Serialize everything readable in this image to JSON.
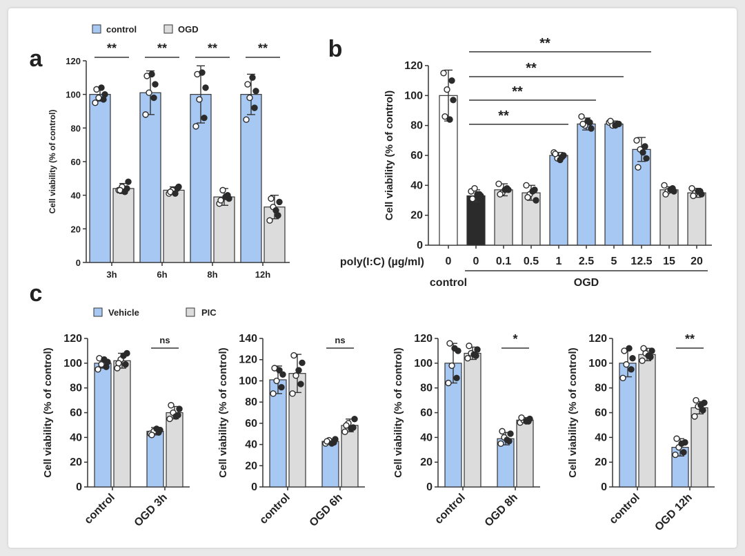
{
  "colors": {
    "blue": "#a8c8f4",
    "gray": "#dcdcdc",
    "black": "#2b2b2b",
    "white": "#ffffff",
    "axis": "#333333"
  },
  "panel_letters": {
    "a": "a",
    "b": "b",
    "c": "c"
  },
  "chart_data": [
    {
      "id": "a",
      "type": "bar",
      "title": "",
      "ylabel": "Cell viability (% of control)",
      "xlabel": "",
      "ylim": [
        0,
        120
      ],
      "yticks": [
        0,
        20,
        40,
        60,
        80,
        100,
        120
      ],
      "categories": [
        "3h",
        "6h",
        "8h",
        "12h"
      ],
      "legend": [
        {
          "label": "control",
          "color": "blue"
        },
        {
          "label": "OGD",
          "color": "gray"
        }
      ],
      "series": [
        {
          "name": "control",
          "color": "blue",
          "values": [
            100,
            101,
            100,
            100
          ],
          "errors": [
            4,
            13,
            17,
            12
          ],
          "points": [
            [
              95,
              97,
              98,
              100,
              103,
              104
            ],
            [
              88,
              98,
              101,
              106,
              111,
              112
            ],
            [
              81,
              86,
              97,
              104,
              112,
              113
            ],
            [
              85,
              92,
              98,
              102,
              106,
              110
            ]
          ]
        },
        {
          "name": "OGD",
          "color": "gray",
          "values": [
            44,
            43,
            39,
            33
          ],
          "errors": [
            3,
            2,
            5,
            7
          ],
          "points": [
            [
              43,
              44,
              45,
              48,
              43,
              42
            ],
            [
              41,
              44,
              43,
              45,
              42,
              41
            ],
            [
              35,
              40,
              43,
              38,
              37,
              39
            ],
            [
              25,
              28,
              33,
              36,
              38,
              31
            ]
          ]
        }
      ],
      "significance": [
        "**",
        "**",
        "**",
        "**"
      ]
    },
    {
      "id": "b",
      "type": "bar",
      "ylabel": "Cell viability (% of control)",
      "xlabel": "poly(I:C) (µg/ml)",
      "ylim": [
        0,
        120
      ],
      "yticks": [
        0,
        20,
        40,
        60,
        80,
        100,
        120
      ],
      "categories": [
        "0",
        "0",
        "0.1",
        "0.5",
        "1",
        "2.5",
        "5",
        "12.5",
        "15",
        "20"
      ],
      "groups": [
        {
          "label": "control",
          "from": 0,
          "to": 0
        },
        {
          "label": "OGD",
          "from": 1,
          "to": 9
        }
      ],
      "values": [
        100,
        33,
        37,
        35,
        60,
        81,
        81,
        64,
        37,
        35
      ],
      "errors": [
        17,
        4,
        4,
        5,
        2,
        4,
        2,
        8,
        2,
        3
      ],
      "colors": [
        "white",
        "black",
        "gray",
        "gray",
        "blue",
        "blue",
        "blue",
        "blue",
        "gray",
        "gray"
      ],
      "points": [
        [
          115,
          110,
          104,
          97,
          86,
          84
        ],
        [
          36,
          34,
          38,
          33,
          31,
          34
        ],
        [
          41,
          38,
          35,
          37,
          34,
          37
        ],
        [
          40,
          37,
          34,
          30,
          32,
          36
        ],
        [
          62,
          59,
          58,
          60,
          61,
          57
        ],
        [
          86,
          82,
          80,
          78,
          81,
          83
        ],
        [
          82,
          81,
          80,
          81,
          83,
          80
        ],
        [
          70,
          66,
          64,
          58,
          52,
          62
        ],
        [
          40,
          38,
          36,
          36,
          34,
          37
        ],
        [
          38,
          36,
          35,
          34,
          33,
          36
        ]
      ],
      "significance": [
        {
          "from": 1,
          "to": 4,
          "label": "**"
        },
        {
          "from": 1,
          "to": 5,
          "label": "**"
        },
        {
          "from": 1,
          "to": 6,
          "label": "**"
        },
        {
          "from": 1,
          "to": 7,
          "label": "**"
        }
      ]
    },
    {
      "id": "c1",
      "type": "bar",
      "ylabel": "Cell viability (% of control)",
      "ylim": [
        0,
        120
      ],
      "yticks": [
        0,
        20,
        40,
        60,
        80,
        100,
        120
      ],
      "categories": [
        "control",
        "OGD 3h"
      ],
      "series": [
        {
          "name": "Vehicle",
          "color": "blue",
          "values": [
            100,
            45
          ],
          "errors": [
            4,
            3
          ],
          "points": [
            [
              95,
              97,
              99,
              101,
              104,
              103
            ],
            [
              43,
              44,
              45,
              46,
              42,
              47
            ]
          ]
        },
        {
          "name": "PIC",
          "color": "gray",
          "values": [
            102,
            60
          ],
          "errors": [
            6,
            5
          ],
          "points": [
            [
              96,
              99,
              103,
              108,
              100,
              106
            ],
            [
              55,
              58,
              60,
              63,
              66,
              57
            ]
          ]
        }
      ],
      "significance": "ns"
    },
    {
      "id": "c2",
      "type": "bar",
      "ylabel": "Cell viability (% of control)",
      "ylim": [
        0,
        140
      ],
      "yticks": [
        0,
        20,
        40,
        60,
        80,
        100,
        120,
        140
      ],
      "categories": [
        "control",
        "OGD 6h"
      ],
      "series": [
        {
          "name": "Vehicle",
          "color": "blue",
          "values": [
            101,
            43
          ],
          "errors": [
            13,
            2
          ],
          "points": [
            [
              88,
              94,
              100,
              106,
              112,
              110
            ],
            [
              41,
              42,
              44,
              45,
              43,
              41
            ]
          ]
        },
        {
          "name": "PIC",
          "color": "gray",
          "values": [
            107,
            58
          ],
          "errors": [
            18,
            6
          ],
          "points": [
            [
              88,
              97,
              105,
              117,
              124,
              110
            ],
            [
              52,
              56,
              60,
              64,
              58,
              55
            ]
          ]
        }
      ],
      "significance": "ns"
    },
    {
      "id": "c3",
      "type": "bar",
      "ylabel": "Cell viability (% of control)",
      "ylim": [
        0,
        120
      ],
      "yticks": [
        0,
        20,
        40,
        60,
        80,
        100,
        120
      ],
      "categories": [
        "control",
        "OGD 8h"
      ],
      "series": [
        {
          "name": "Vehicle",
          "color": "blue",
          "values": [
            100,
            39
          ],
          "errors": [
            16,
            5
          ],
          "points": [
            [
              84,
              88,
              98,
              110,
              116,
              112
            ],
            [
              35,
              37,
              40,
              43,
              45,
              38
            ]
          ]
        },
        {
          "name": "PIC",
          "color": "gray",
          "values": [
            108,
            54
          ],
          "errors": [
            5,
            2
          ],
          "points": [
            [
              104,
              106,
              108,
              111,
              114,
              107
            ],
            [
              52,
              53,
              54,
              55,
              56,
              53
            ]
          ]
        }
      ],
      "significance": "*"
    },
    {
      "id": "c4",
      "type": "bar",
      "ylabel": "Cell viability (% of control)",
      "ylim": [
        0,
        120
      ],
      "yticks": [
        0,
        20,
        40,
        60,
        80,
        100,
        120
      ],
      "categories": [
        "control",
        "OGD 12h"
      ],
      "series": [
        {
          "name": "Vehicle",
          "color": "blue",
          "values": [
            100,
            32
          ],
          "errors": [
            11,
            7
          ],
          "points": [
            [
              88,
              95,
              99,
              104,
              110,
              112
            ],
            [
              26,
              28,
              32,
              36,
              39,
              35
            ]
          ]
        },
        {
          "name": "PIC",
          "color": "gray",
          "values": [
            107,
            64
          ],
          "errors": [
            5,
            5
          ],
          "points": [
            [
              102,
              105,
              108,
              110,
              112,
              106
            ],
            [
              57,
              62,
              65,
              68,
              70,
              66
            ]
          ]
        }
      ],
      "significance": "**"
    }
  ],
  "legend_c": [
    {
      "label": "Vehicle",
      "color": "blue"
    },
    {
      "label": "PIC",
      "color": "gray"
    }
  ]
}
